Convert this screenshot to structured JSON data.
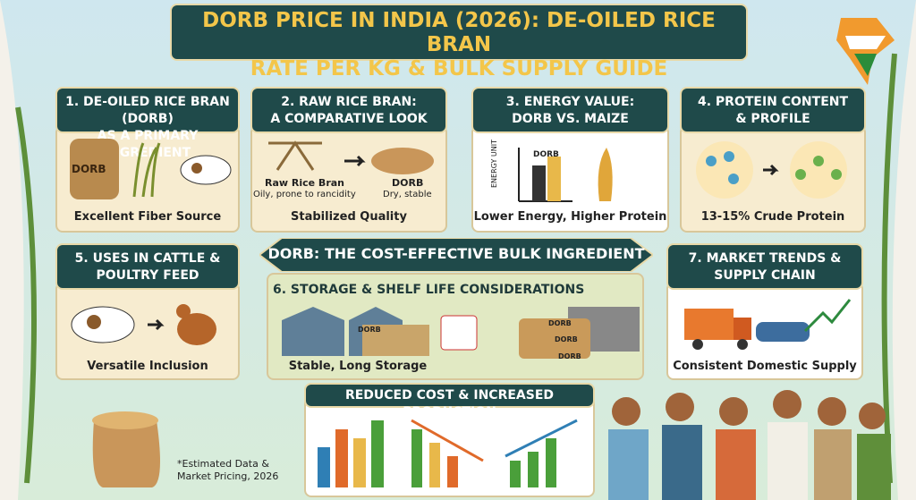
{
  "header": {
    "title_lines": [
      "DORB PRICE IN INDIA (2026): DE-OILED RICE BRAN",
      "RATE PER KG & BULK SUPPLY GUIDE"
    ]
  },
  "panels": [
    {
      "heading_lines": [
        "1. DE-OILED RICE BRAN (DORB)",
        "AS A PRIMARY INGREDIENT"
      ],
      "labels": [
        "DORB"
      ],
      "caption": "Excellent Fiber Source"
    },
    {
      "heading_lines": [
        "2. RAW RICE BRAN:",
        "A COMPARATIVE LOOK"
      ],
      "labels": [
        "Raw Rice Bran",
        "Oily, prone to rancidity",
        "DORB",
        "Dry, stable"
      ],
      "caption": "Stabilized Quality"
    },
    {
      "heading_lines": [
        "3. ENERGY VALUE:",
        "DORB VS. MAIZE"
      ],
      "labels": [
        "ENERGY UNIT",
        "DORB"
      ],
      "caption": "Lower Energy, Higher Protein"
    },
    {
      "heading_lines": [
        "4. PROTEIN CONTENT",
        "& PROFILE"
      ],
      "labels": [],
      "caption": "13-15% Crude Protein"
    },
    {
      "heading_lines": [
        "5. USES IN CATTLE &",
        "POULTRY FEED"
      ],
      "labels": [],
      "caption": "Versatile Inclusion"
    },
    {
      "heading_lines": [
        "6. STORAGE & SHELF LIFE CONSIDERATIONS"
      ],
      "labels": [
        "DORB",
        "DORB",
        "DORB",
        "DORB"
      ],
      "caption": "Stable, Long Storage"
    },
    {
      "heading_lines": [
        "7. MARKET TRENDS &",
        "SUPPLY CHAIN"
      ],
      "labels": [],
      "caption": "Consistent Domestic Supply"
    }
  ],
  "banner": "DORB: THE COST-EFFECTIVE BULK INGREDIENT",
  "bottom": {
    "heading": "REDUCED COST & INCREASED PRODUCTION",
    "footnote_lines": [
      "*Estimated Data &",
      "Market Pricing, 2026"
    ]
  }
}
